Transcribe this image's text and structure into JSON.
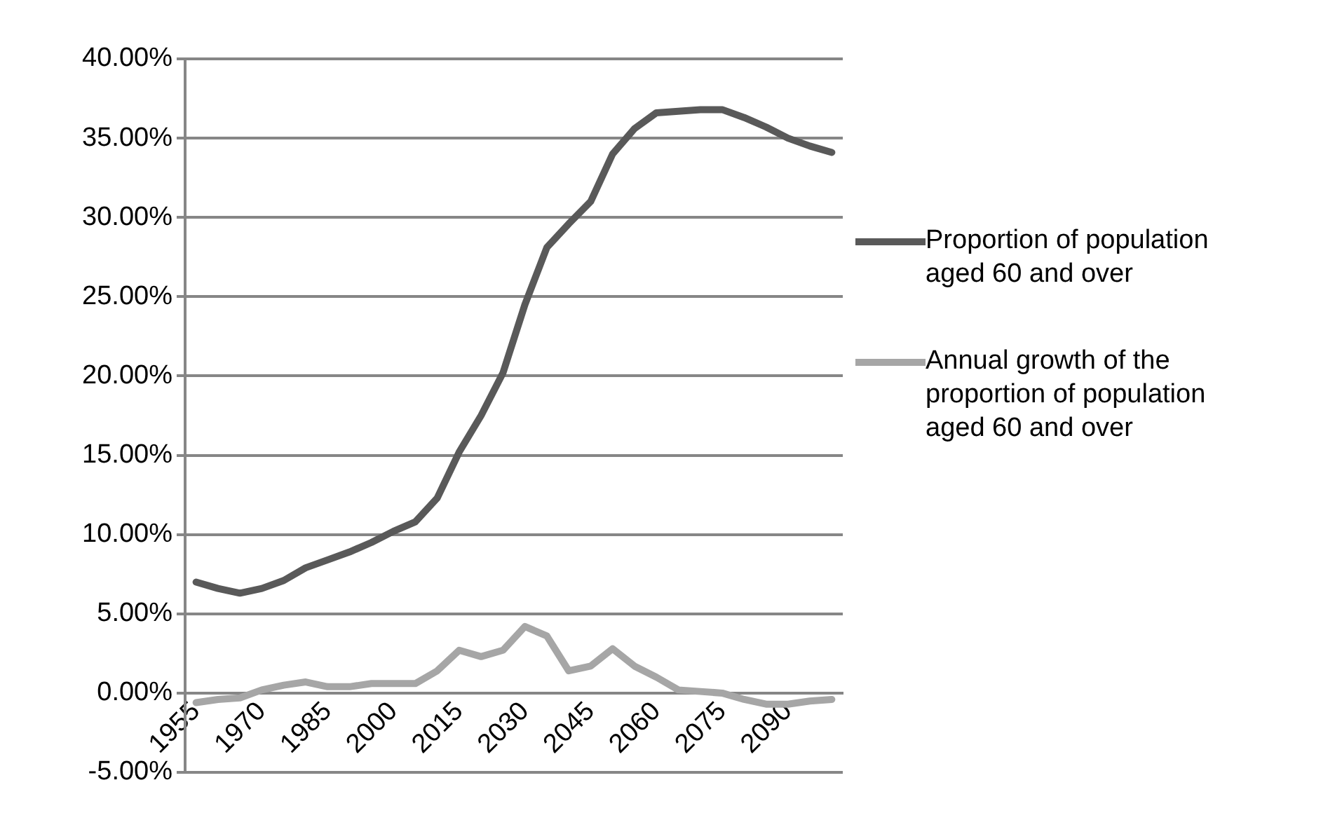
{
  "chart_data": {
    "type": "line",
    "categories": [
      "1955",
      null,
      null,
      "1970",
      null,
      null,
      "1985",
      null,
      null,
      "2000",
      null,
      null,
      "2015",
      null,
      null,
      "2030",
      null,
      null,
      "2045",
      null,
      null,
      "2060",
      null,
      null,
      "2075",
      null,
      null,
      "2090",
      null,
      null
    ],
    "series": [
      {
        "name": "Proportion of population aged 60 and over",
        "color": "#595959",
        "values": [
          7.0,
          6.6,
          6.3,
          6.6,
          7.1,
          7.9,
          8.4,
          8.9,
          9.5,
          10.2,
          10.8,
          12.3,
          15.2,
          17.5,
          20.2,
          24.5,
          28.1,
          29.6,
          31.0,
          34.0,
          35.6,
          36.6,
          36.7,
          36.8,
          36.8,
          36.3,
          35.7,
          35.0,
          34.5,
          34.1
        ]
      },
      {
        "name": "Annual growth of the proportion of population aged 60 and over",
        "color": "#a6a6a6",
        "values": [
          -0.6,
          -0.4,
          -0.3,
          0.2,
          0.5,
          0.7,
          0.4,
          0.4,
          0.6,
          0.6,
          0.6,
          1.4,
          2.7,
          2.3,
          2.7,
          4.2,
          3.6,
          1.4,
          1.7,
          2.8,
          1.7,
          1.0,
          0.2,
          0.1,
          0.0,
          -0.4,
          -0.7,
          -0.7,
          -0.5,
          -0.4
        ]
      }
    ],
    "ylim": [
      -5,
      40
    ],
    "yticks": [
      {
        "value": -5,
        "label": "-5.00%"
      },
      {
        "value": 0,
        "label": "0.00%"
      },
      {
        "value": 5,
        "label": "5.00%"
      },
      {
        "value": 10,
        "label": "10.00%"
      },
      {
        "value": 15,
        "label": "15.00%"
      },
      {
        "value": 20,
        "label": "20.00%"
      },
      {
        "value": 25,
        "label": "25.00%"
      },
      {
        "value": 30,
        "label": "30.00%"
      },
      {
        "value": 35,
        "label": "35.00%"
      },
      {
        "value": 40,
        "label": "40.00%"
      }
    ],
    "grid": "y",
    "legend": "right",
    "marker": "none",
    "line_style": "solid"
  }
}
